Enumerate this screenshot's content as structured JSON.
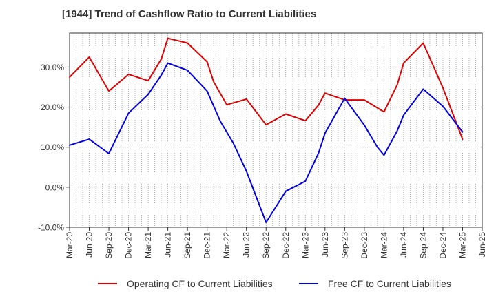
{
  "title": "[1944]  Trend of Cashflow Ratio to Current Liabilities",
  "colors": {
    "operating": "#e00000",
    "free": "#0000e0",
    "grid": "#9a9a9a",
    "axis": "#333333"
  },
  "chart_data": {
    "type": "line",
    "title": "[1944]  Trend of Cashflow Ratio to Current Liabilities",
    "xlabel": "",
    "ylabel": "",
    "grid": true,
    "legend_position": "bottom",
    "x_tick_labels": [
      "Mar-20",
      "Jun-20",
      "Sep-20",
      "Dec-20",
      "Mar-21",
      "Jun-21",
      "Sep-21",
      "Dec-21",
      "Mar-22",
      "Jun-22",
      "Sep-22",
      "Dec-22",
      "Mar-23",
      "Jun-23",
      "Sep-23",
      "Dec-23",
      "Mar-24",
      "Jun-24",
      "Sep-24",
      "Dec-24",
      "Mar-25",
      "Jun-25"
    ],
    "y_ticks": [
      -10,
      0,
      10,
      20,
      30
    ],
    "y_tick_labels": [
      "-10.0%",
      "0.0%",
      "10.0%",
      "20.0%",
      "30.0%"
    ],
    "ylim": [
      -10,
      38.5
    ],
    "x_months_from_start": [
      0,
      1,
      2,
      3,
      4,
      5,
      6,
      7,
      8,
      9,
      10,
      11,
      12,
      13,
      14,
      15,
      16,
      17,
      18,
      19,
      20,
      21,
      22,
      23,
      24,
      25,
      26,
      27,
      28,
      29,
      30,
      31,
      32,
      33,
      34,
      35,
      36,
      37,
      38,
      39,
      40,
      41,
      42,
      43,
      44,
      45,
      46,
      47,
      48,
      49,
      50,
      51,
      52,
      53,
      54,
      55,
      56,
      57,
      58,
      59,
      60,
      61,
      62,
      63
    ],
    "series": [
      {
        "name": "Operating CF to Current Liabilities",
        "color": "#e00000",
        "points": [
          [
            0,
            27.5
          ],
          [
            3,
            32.5
          ],
          [
            6,
            24.0
          ],
          [
            9,
            28.2
          ],
          [
            12,
            26.6
          ],
          [
            14,
            32.0
          ],
          [
            15,
            37.2
          ],
          [
            18,
            36.0
          ],
          [
            21,
            31.3
          ],
          [
            22,
            26.3
          ],
          [
            24,
            20.6
          ],
          [
            27,
            22.0
          ],
          [
            30,
            15.6
          ],
          [
            33,
            18.3
          ],
          [
            36,
            16.6
          ],
          [
            38,
            20.5
          ],
          [
            39,
            23.5
          ],
          [
            42,
            21.8
          ],
          [
            45,
            21.8
          ],
          [
            48,
            18.8
          ],
          [
            50,
            25.5
          ],
          [
            51,
            31.0
          ],
          [
            54,
            36.0
          ],
          [
            57,
            24.8
          ],
          [
            60,
            12.0
          ]
        ]
      },
      {
        "name": "Free CF to Current Liabilities",
        "color": "#0000e0",
        "points": [
          [
            0,
            10.5
          ],
          [
            3,
            12.0
          ],
          [
            6,
            8.4
          ],
          [
            9,
            18.5
          ],
          [
            12,
            23.2
          ],
          [
            14,
            28.0
          ],
          [
            15,
            31.0
          ],
          [
            18,
            29.2
          ],
          [
            21,
            24.0
          ],
          [
            23,
            16.5
          ],
          [
            25,
            11.0
          ],
          [
            27,
            4.0
          ],
          [
            30,
            -8.8
          ],
          [
            33,
            -1.0
          ],
          [
            36,
            1.5
          ],
          [
            38,
            8.5
          ],
          [
            39,
            13.5
          ],
          [
            42,
            22.2
          ],
          [
            45,
            15.5
          ],
          [
            47,
            10.0
          ],
          [
            48,
            8.0
          ],
          [
            50,
            14.0
          ],
          [
            51,
            18.0
          ],
          [
            54,
            24.5
          ],
          [
            57,
            20.2
          ],
          [
            60,
            13.8
          ]
        ]
      }
    ]
  }
}
